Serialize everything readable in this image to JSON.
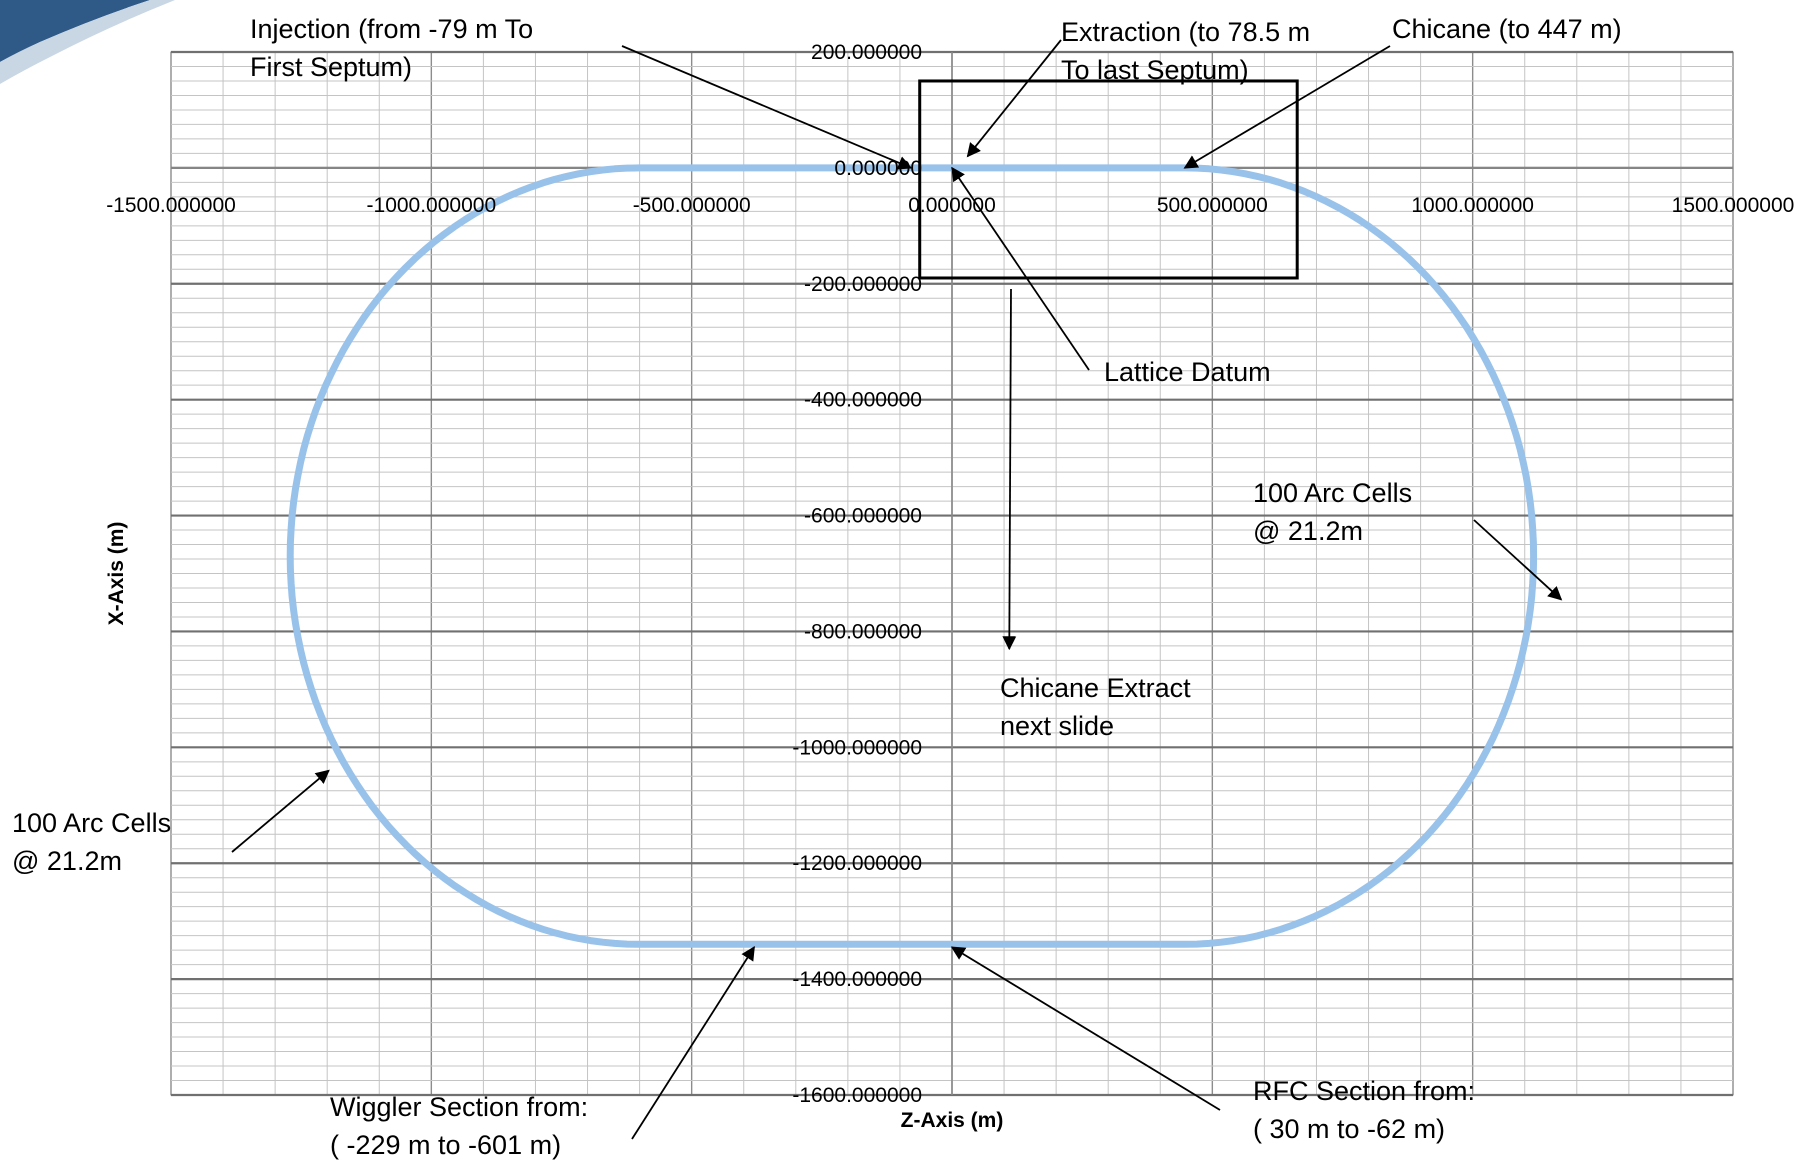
{
  "chart_data": {
    "type": "scatter",
    "xlabel": "Z-Axis (m)",
    "ylabel": "X-Axis (m)",
    "xlim": [
      -1500,
      1500
    ],
    "ylim": [
      -1600,
      200
    ],
    "grid": "on",
    "x_ticks": [
      {
        "value": -1500,
        "label": "-1500.000000"
      },
      {
        "value": -1000,
        "label": "-1000.000000"
      },
      {
        "value": -500,
        "label": "-500.000000"
      },
      {
        "value": 0,
        "label": "0.000000"
      },
      {
        "value": 500,
        "label": "500.000000"
      },
      {
        "value": 1000,
        "label": "1000.000000"
      },
      {
        "value": 1500,
        "label": "1500.000000"
      }
    ],
    "y_ticks": [
      {
        "value": 200,
        "label": "200.000000"
      },
      {
        "value": 0,
        "label": "0.000000"
      },
      {
        "value": -200,
        "label": "-200.000000"
      },
      {
        "value": -400,
        "label": "-400.000000"
      },
      {
        "value": -600,
        "label": "-600.000000"
      },
      {
        "value": -800,
        "label": "-800.000000"
      },
      {
        "value": -1000,
        "label": "-1000.000000"
      },
      {
        "value": -1200,
        "label": "-1200.000000"
      },
      {
        "value": -1400,
        "label": "-1400.000000"
      },
      {
        "value": -1600,
        "label": "-1600.000000"
      }
    ],
    "series": [
      {
        "shape": "racetrack",
        "color": "#99c2ea",
        "straight_z_range": [
          -601,
          447
        ],
        "arc_center_x": -670,
        "arc_radius": 670,
        "extent_z": [
          -1271,
          1171
        ],
        "extent_x": [
          -1340,
          0
        ]
      }
    ],
    "highlight_box": {
      "z": [
        -62,
        663
      ],
      "x": [
        -190,
        150
      ]
    },
    "annotations": [
      {
        "id": "injection",
        "lines": [
          "Injection (from -79 m To",
          "First Septum)"
        ],
        "color": "#000000",
        "target": [
          -79,
          0
        ]
      },
      {
        "id": "extraction",
        "lines": [
          "Extraction (to 78.5 m",
          "To last Septum)"
        ],
        "color": "#000000",
        "target": [
          30,
          20
        ]
      },
      {
        "id": "chicane",
        "lines": [
          "Chicane (to 447 m)"
        ],
        "color": "#000000",
        "target": [
          447,
          0
        ]
      },
      {
        "id": "lattice-datum",
        "lines": [
          "Lattice Datum"
        ],
        "color": "#ff0000",
        "target": [
          0,
          0
        ]
      },
      {
        "id": "chicane-extract",
        "lines": [
          "Chicane Extract",
          "next slide"
        ],
        "color": "#000000",
        "target": [
          110,
          -830
        ]
      },
      {
        "id": "arc-right",
        "lines": [
          "100 Arc Cells",
          "@ 21.2m"
        ],
        "color": "#000000",
        "target": [
          1170,
          -745
        ]
      },
      {
        "id": "arc-left",
        "lines": [
          "100 Arc Cells",
          "@ 21.2m"
        ],
        "color": "#000000",
        "target": [
          -1197,
          -1040
        ]
      },
      {
        "id": "wiggler",
        "lines": [
          "Wiggler Section from:",
          "( -229 m to -601 m)"
        ],
        "color": "#000000",
        "target": [
          -380,
          -1345
        ]
      },
      {
        "id": "rfc",
        "lines": [
          "RFC Section from:",
          "( 30 m to -62 m)"
        ],
        "color": "#000000",
        "target": [
          0,
          -1345
        ]
      }
    ]
  }
}
